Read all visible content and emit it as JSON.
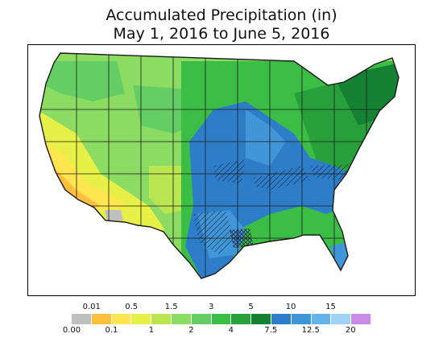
{
  "title": {
    "line1": "Accumulated Precipitation (in)",
    "line2": "May 1, 2016 to June 5, 2016"
  },
  "legend": {
    "bins": [
      {
        "label": "0.00",
        "color": "#bfbfbf",
        "row": "bottom"
      },
      {
        "label": "0.01",
        "color": "#ffbe3c",
        "row": "top"
      },
      {
        "label": "0.1",
        "color": "#ffe650",
        "row": "bottom"
      },
      {
        "label": "0.5",
        "color": "#e6f046",
        "row": "top"
      },
      {
        "label": "1",
        "color": "#b9e650",
        "row": "bottom"
      },
      {
        "label": "1.5",
        "color": "#8cdc64",
        "row": "top"
      },
      {
        "label": "2",
        "color": "#64cd64",
        "row": "bottom"
      },
      {
        "label": "3",
        "color": "#3cbe46",
        "row": "top"
      },
      {
        "label": "4",
        "color": "#28a03c",
        "row": "bottom"
      },
      {
        "label": "5",
        "color": "#148232",
        "row": "top"
      },
      {
        "label": "7.5",
        "color": "#2d7dc8",
        "row": "bottom"
      },
      {
        "label": "10",
        "color": "#4196d7",
        "row": "top"
      },
      {
        "label": "12.5",
        "color": "#64b4eb",
        "row": "bottom"
      },
      {
        "label": "15",
        "color": "#a0d2f5",
        "row": "top"
      },
      {
        "label": "20",
        "color": "#c88ce6",
        "row": "bottom"
      }
    ]
  },
  "map": {
    "colors": {
      "ocean": "#ffffff",
      "outside_us": "#ffffff",
      "state_lines": "#1a1a1a",
      "hatch": "#1a2a44"
    }
  }
}
